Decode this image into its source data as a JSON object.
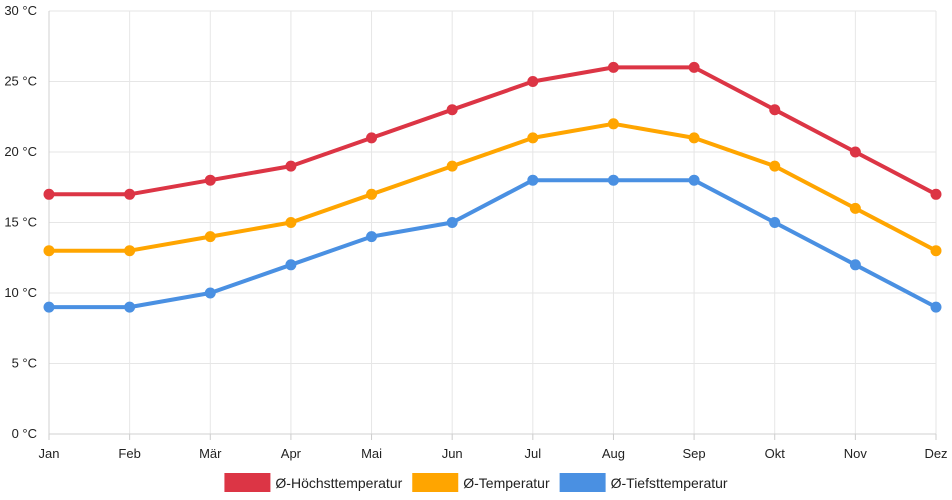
{
  "chart_data": {
    "type": "line",
    "title": "",
    "xlabel": "",
    "ylabel": "",
    "categories": [
      "Jan",
      "Feb",
      "Mär",
      "Apr",
      "Mai",
      "Jun",
      "Jul",
      "Aug",
      "Sep",
      "Okt",
      "Nov",
      "Dez"
    ],
    "ylim": [
      0,
      30
    ],
    "y_ticks": [
      {
        "value": 0,
        "label": "0 °C"
      },
      {
        "value": 5,
        "label": "5 °C"
      },
      {
        "value": 10,
        "label": "10 °C"
      },
      {
        "value": 15,
        "label": "15 °C"
      },
      {
        "value": 20,
        "label": "20 °C"
      },
      {
        "value": 25,
        "label": "25 °C"
      },
      {
        "value": 30,
        "label": "30 °C"
      }
    ],
    "grid": true,
    "legend_position": "bottom",
    "series": [
      {
        "key": "max",
        "name": "Ø-Höchsttemperatur",
        "color": "#dc3545",
        "values": [
          17,
          17,
          18,
          19,
          21,
          23,
          25,
          26,
          26,
          23,
          20,
          17
        ]
      },
      {
        "key": "avg",
        "name": "Ø-Temperatur",
        "color": "#ffa500",
        "values": [
          13,
          13,
          14,
          15,
          17,
          19,
          21,
          22,
          21,
          19,
          16,
          13
        ]
      },
      {
        "key": "min",
        "name": "Ø-Tiefsttemperatur",
        "color": "#4a90e2",
        "values": [
          9,
          9,
          10,
          12,
          14,
          15,
          18,
          18,
          18,
          15,
          12,
          9
        ]
      }
    ]
  }
}
